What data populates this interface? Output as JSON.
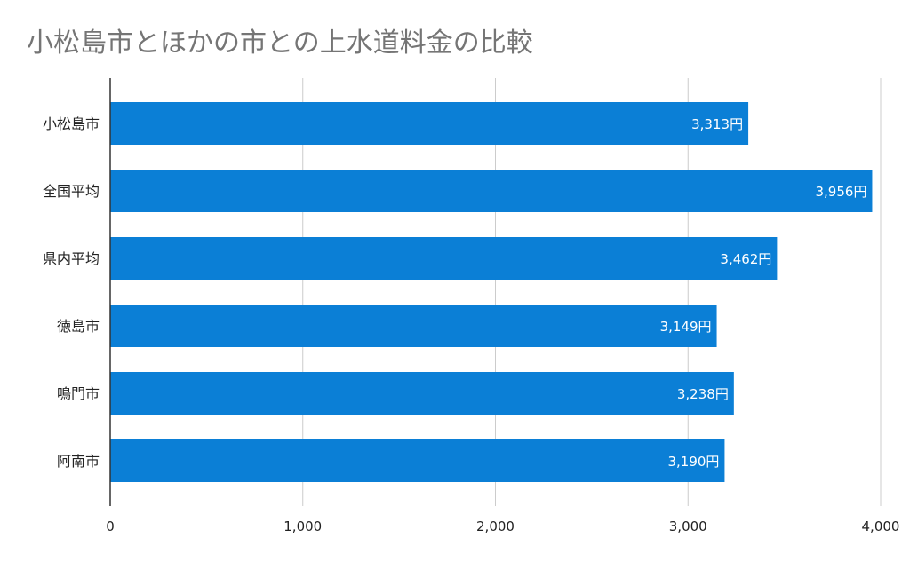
{
  "chart_data": {
    "type": "bar",
    "orientation": "horizontal",
    "title": "小松島市とほかの市との上水道料金の比較",
    "categories": [
      "小松島市",
      "全国平均",
      "県内平均",
      "徳島市",
      "鳴門市",
      "阿南市"
    ],
    "values": [
      3313,
      3956,
      3462,
      3149,
      3238,
      3190
    ],
    "data_labels": [
      "3,313円",
      "3,956円",
      "3,462円",
      "3,149円",
      "3,238円",
      "3,190円"
    ],
    "xlim": [
      0,
      4000
    ],
    "x_ticks": [
      0,
      1000,
      2000,
      3000,
      4000
    ],
    "x_tick_labels": [
      "0",
      "1,000",
      "2,000",
      "3,000",
      "4,000"
    ],
    "xlabel": "",
    "ylabel": "",
    "grid": true,
    "legend": "none",
    "bar_color": "#0b7fd6"
  }
}
